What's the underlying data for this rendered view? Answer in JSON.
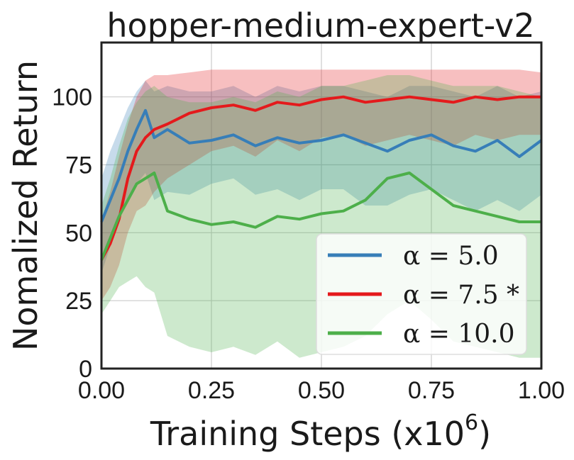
{
  "chart_data": {
    "type": "line",
    "title": "hopper-medium-expert-v2",
    "xlabel": "Training Steps (x10",
    "xlabel_exp": "6",
    "xlabel_close": ")",
    "ylabel": "Nomalized Return",
    "xlim": [
      0,
      1
    ],
    "ylim": [
      0,
      120
    ],
    "xticks": [
      0.0,
      0.25,
      0.5,
      0.75,
      1.0
    ],
    "xtick_labels": [
      "0.00",
      "0.25",
      "0.50",
      "0.75",
      "1.00"
    ],
    "yticks": [
      0,
      25,
      50,
      75,
      100
    ],
    "ytick_labels": [
      "0",
      "25",
      "50",
      "75",
      "100"
    ],
    "grid": true,
    "legend_position": "lower-right",
    "series": [
      {
        "name": "α = 5.0",
        "color": "#377eb8",
        "x": [
          0,
          0.02,
          0.04,
          0.06,
          0.08,
          0.1,
          0.12,
          0.15,
          0.2,
          0.25,
          0.3,
          0.35,
          0.4,
          0.45,
          0.5,
          0.55,
          0.6,
          0.65,
          0.7,
          0.75,
          0.8,
          0.85,
          0.9,
          0.95,
          1.0
        ],
        "y": [
          54,
          62,
          70,
          80,
          88,
          95,
          85,
          88,
          83,
          84,
          86,
          82,
          85,
          83,
          84,
          86,
          83,
          80,
          84,
          86,
          82,
          80,
          84,
          78,
          84
        ],
        "lower": [
          35,
          45,
          55,
          62,
          68,
          72,
          62,
          65,
          64,
          68,
          70,
          64,
          66,
          62,
          66,
          66,
          60,
          60,
          64,
          66,
          62,
          58,
          62,
          58,
          64
        ],
        "upper": [
          70,
          80,
          88,
          96,
          102,
          106,
          102,
          104,
          102,
          102,
          104,
          100,
          104,
          102,
          104,
          104,
          102,
          100,
          104,
          104,
          102,
          100,
          104,
          100,
          102
        ]
      },
      {
        "name": "α = 7.5 *",
        "color": "#e41a1c",
        "x": [
          0,
          0.02,
          0.04,
          0.06,
          0.08,
          0.1,
          0.12,
          0.15,
          0.2,
          0.25,
          0.3,
          0.35,
          0.4,
          0.45,
          0.5,
          0.55,
          0.6,
          0.65,
          0.7,
          0.75,
          0.8,
          0.85,
          0.9,
          0.95,
          1.0
        ],
        "y": [
          40,
          46,
          55,
          70,
          80,
          85,
          88,
          90,
          94,
          96,
          97,
          95,
          98,
          97,
          99,
          100,
          98,
          99,
          100,
          99,
          98,
          100,
          99,
          100,
          100
        ],
        "lower": [
          25,
          30,
          38,
          50,
          58,
          60,
          65,
          70,
          75,
          80,
          82,
          78,
          84,
          80,
          85,
          86,
          82,
          84,
          86,
          84,
          82,
          86,
          84,
          86,
          86
        ],
        "upper": [
          55,
          65,
          78,
          90,
          100,
          106,
          108,
          108,
          109,
          110,
          110,
          110,
          110,
          110,
          110,
          110,
          110,
          110,
          110,
          110,
          110,
          110,
          110,
          110,
          109
        ]
      },
      {
        "name": "α = 10.0",
        "color": "#4daf4a",
        "x": [
          0,
          0.02,
          0.04,
          0.06,
          0.08,
          0.1,
          0.12,
          0.15,
          0.2,
          0.25,
          0.3,
          0.35,
          0.4,
          0.45,
          0.5,
          0.55,
          0.6,
          0.65,
          0.7,
          0.75,
          0.8,
          0.85,
          0.9,
          0.95,
          1.0
        ],
        "y": [
          40,
          48,
          56,
          62,
          68,
          70,
          72,
          58,
          55,
          53,
          54,
          52,
          56,
          55,
          57,
          58,
          62,
          70,
          72,
          66,
          60,
          58,
          56,
          54,
          54
        ],
        "lower": [
          20,
          25,
          30,
          32,
          34,
          30,
          28,
          12,
          8,
          6,
          8,
          5,
          10,
          4,
          6,
          8,
          12,
          20,
          25,
          18,
          10,
          8,
          6,
          4,
          4
        ],
        "upper": [
          60,
          70,
          82,
          92,
          98,
          102,
          104,
          100,
          98,
          98,
          100,
          98,
          102,
          100,
          104,
          104,
          106,
          108,
          108,
          106,
          104,
          104,
          104,
          102,
          100
        ]
      }
    ]
  }
}
